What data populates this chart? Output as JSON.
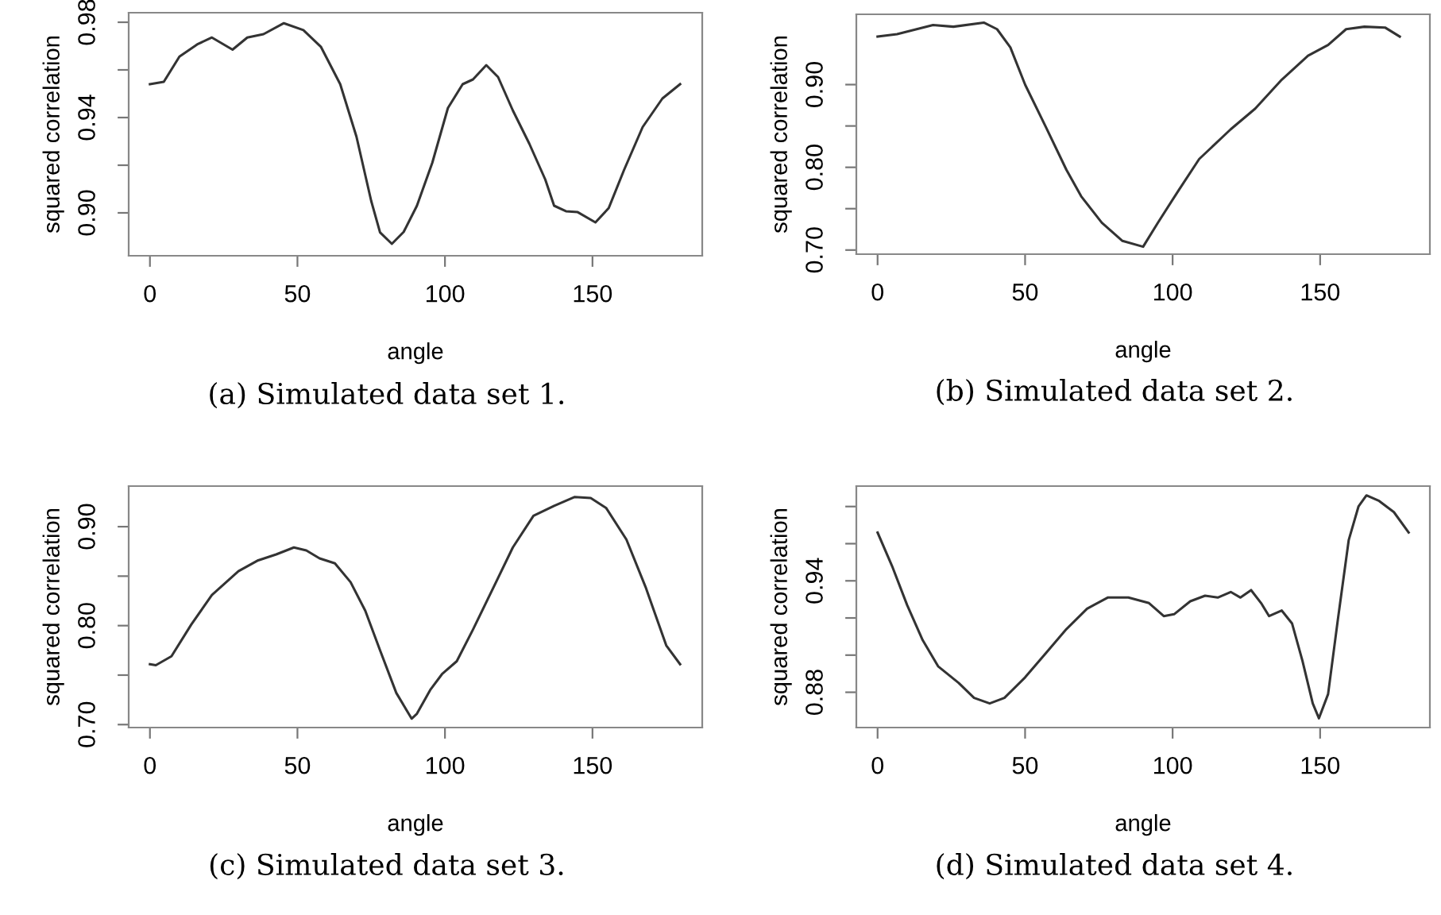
{
  "chart_data": [
    {
      "type": "line",
      "xlabel": "angle",
      "ylabel": "squared correlation",
      "annotations": [
        "(a) Simulated data set 1."
      ],
      "xlim": [
        -7.2,
        187.2
      ],
      "xticks": [
        0,
        50,
        100,
        150
      ],
      "ylim": [
        0.882,
        0.984
      ],
      "yticks": [
        {
          "value": 0.9,
          "label": "0.90"
        },
        {
          "value": 0.92,
          "label": null
        },
        0.94,
        {
          "value": 0.96,
          "label": null
        },
        0.98
      ],
      "grid": false,
      "marker": "none",
      "line_style": "solid",
      "series": [
        {
          "color": "#333333",
          "x": [
            0,
            4.7,
            10,
            16,
            21,
            28,
            33,
            38.5,
            45.4,
            52,
            58,
            64.5,
            70,
            75,
            78,
            82,
            86,
            90.5,
            95.7,
            101,
            106,
            109.5,
            114,
            118,
            123,
            128.6,
            134,
            137,
            141,
            145,
            151,
            155.5,
            160.7,
            167,
            173.7,
            179.7
          ],
          "values": [
            0.954,
            0.955,
            0.9656,
            0.9707,
            0.9736,
            0.9685,
            0.9736,
            0.975,
            0.9796,
            0.9767,
            0.9696,
            0.954,
            0.932,
            0.905,
            0.8918,
            0.887,
            0.892,
            0.903,
            0.921,
            0.944,
            0.954,
            0.956,
            0.962,
            0.957,
            0.943,
            0.929,
            0.914,
            0.903,
            0.9007,
            0.9003,
            0.896,
            0.902,
            0.918,
            0.936,
            0.948,
            0.954
          ]
        }
      ]
    },
    {
      "type": "line",
      "xlabel": "angle",
      "ylabel": "squared correlation",
      "annotations": [
        "(b) Simulated data set 2."
      ],
      "xlim": [
        -7.2,
        187.2
      ],
      "xticks": [
        0,
        50,
        100,
        150
      ],
      "ylim": [
        0.695,
        0.985
      ],
      "yticks": [
        {
          "value": 0.7,
          "label": "0.70"
        },
        {
          "value": 0.75,
          "label": null
        },
        {
          "value": 0.8,
          "label": "0.80"
        },
        {
          "value": 0.85,
          "label": null
        },
        {
          "value": 0.9,
          "label": "0.90"
        }
      ],
      "grid": false,
      "marker": "none",
      "line_style": "solid",
      "series": [
        {
          "color": "#333333",
          "x": [
            0,
            6.6,
            18.8,
            25.7,
            36,
            40.5,
            45,
            50,
            57,
            64,
            69,
            76,
            83,
            90,
            95,
            102,
            109,
            119.7,
            128,
            137,
            145.9,
            152.7,
            158.8,
            165,
            172,
            177
          ],
          "values": [
            0.958,
            0.961,
            0.972,
            0.97,
            0.975,
            0.967,
            0.945,
            0.9,
            0.849,
            0.797,
            0.765,
            0.733,
            0.711,
            0.704,
            0.733,
            0.772,
            0.81,
            0.846,
            0.871,
            0.906,
            0.935,
            0.948,
            0.967,
            0.97,
            0.969,
            0.958
          ]
        }
      ]
    },
    {
      "type": "line",
      "xlabel": "angle",
      "ylabel": "squared correlation",
      "annotations": [
        "(c) Simulated data set 3."
      ],
      "xlim": [
        -7.2,
        187.2
      ],
      "xticks": [
        0,
        50,
        100,
        150
      ],
      "ylim": [
        0.697,
        0.941
      ],
      "yticks": [
        {
          "value": 0.7,
          "label": "0.70"
        },
        {
          "value": 0.75,
          "label": null
        },
        {
          "value": 0.8,
          "label": "0.80"
        },
        {
          "value": 0.85,
          "label": null
        },
        {
          "value": 0.9,
          "label": "0.90"
        }
      ],
      "grid": false,
      "marker": "none",
      "line_style": "solid",
      "series": [
        {
          "color": "#333333",
          "x": [
            0,
            2,
            7.3,
            14,
            21,
            30,
            36.7,
            42.8,
            48.8,
            53,
            57.5,
            62.7,
            68,
            73,
            78,
            83.5,
            88.7,
            90.5,
            95,
            99,
            104,
            109.5,
            116.5,
            123,
            130,
            137,
            144,
            149.4,
            154.6,
            161.5,
            168,
            175,
            179.7
          ],
          "values": [
            0.761,
            0.76,
            0.769,
            0.801,
            0.831,
            0.855,
            0.866,
            0.872,
            0.879,
            0.876,
            0.868,
            0.863,
            0.844,
            0.815,
            0.775,
            0.732,
            0.706,
            0.711,
            0.735,
            0.751,
            0.764,
            0.796,
            0.839,
            0.879,
            0.911,
            0.921,
            0.93,
            0.929,
            0.919,
            0.887,
            0.839,
            0.78,
            0.761
          ]
        }
      ]
    },
    {
      "type": "line",
      "xlabel": "angle",
      "ylabel": "squared correlation",
      "annotations": [
        "(d) Simulated data set 4."
      ],
      "xlim": [
        -7.2,
        187.2
      ],
      "xticks": [
        0,
        50,
        100,
        150
      ],
      "ylim": [
        0.861,
        0.991
      ],
      "yticks": [
        0.88,
        {
          "value": 0.9,
          "label": null
        },
        {
          "value": 0.92,
          "label": null
        },
        0.94,
        {
          "value": 0.96,
          "label": null
        },
        {
          "value": 0.98,
          "label": null
        }
      ],
      "grid": false,
      "marker": "none",
      "line_style": "solid",
      "series": [
        {
          "color": "#333333",
          "x": [
            0,
            4.9,
            10,
            15.3,
            20.5,
            27.5,
            32.7,
            38,
            43,
            50,
            57,
            64,
            71,
            78,
            85,
            92,
            97,
            100.5,
            106,
            111,
            115.3,
            119.7,
            123,
            126.6,
            130,
            132.7,
            137,
            140.5,
            144,
            147.5,
            149.6,
            152.7,
            156,
            159.7,
            163,
            165.7,
            170,
            175,
            180
          ],
          "values": [
            0.966,
            0.948,
            0.927,
            0.908,
            0.894,
            0.885,
            0.877,
            0.874,
            0.877,
            0.888,
            0.901,
            0.914,
            0.925,
            0.931,
            0.931,
            0.928,
            0.921,
            0.922,
            0.929,
            0.932,
            0.931,
            0.934,
            0.931,
            0.935,
            0.928,
            0.921,
            0.924,
            0.917,
            0.897,
            0.874,
            0.866,
            0.879,
            0.919,
            0.962,
            0.98,
            0.986,
            0.983,
            0.977,
            0.966
          ]
        }
      ]
    }
  ]
}
